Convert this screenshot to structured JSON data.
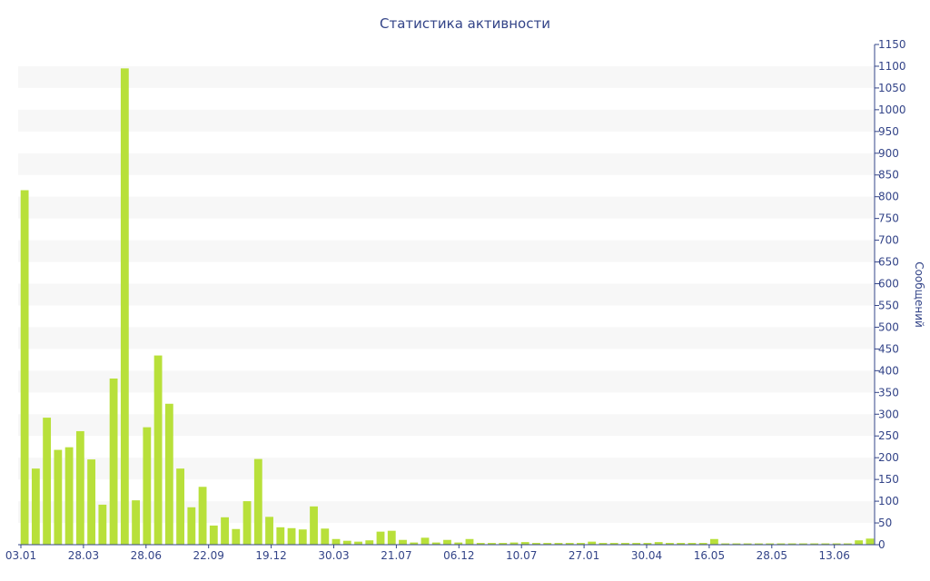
{
  "chart_data": {
    "type": "bar",
    "title": "Статистика активности",
    "ylabel": "Сообщений",
    "xlabel": "",
    "ylim": [
      0,
      1150
    ],
    "y_tick_step": 50,
    "y_axis_side": "right",
    "grid": "alternating horizontal bands",
    "x_tick_labels": [
      "03.01",
      "28.03",
      "28.06",
      "22.09",
      "19.12",
      "30.03",
      "21.07",
      "06.12",
      "10.07",
      "27.01",
      "30.04",
      "16.05",
      "28.05",
      "13.06"
    ],
    "values": [
      815,
      175,
      292,
      218,
      224,
      261,
      196,
      92,
      382,
      1095,
      102,
      270,
      435,
      324,
      175,
      86,
      133,
      44,
      63,
      36,
      100,
      197,
      64,
      40,
      38,
      35,
      88,
      37,
      13,
      9,
      7,
      10,
      30,
      32,
      11,
      5,
      16,
      5,
      11,
      5,
      13,
      4,
      4,
      4,
      5,
      6,
      4,
      4,
      4,
      4,
      4,
      7,
      4,
      4,
      4,
      4,
      4,
      6,
      4,
      4,
      4,
      4,
      13,
      3,
      3,
      3,
      3,
      3,
      3,
      3,
      3,
      3,
      3,
      3,
      3,
      10,
      14
    ],
    "colors": {
      "bar": "#b8e03a",
      "text": "#334488",
      "band": "#f7f7f7"
    }
  }
}
